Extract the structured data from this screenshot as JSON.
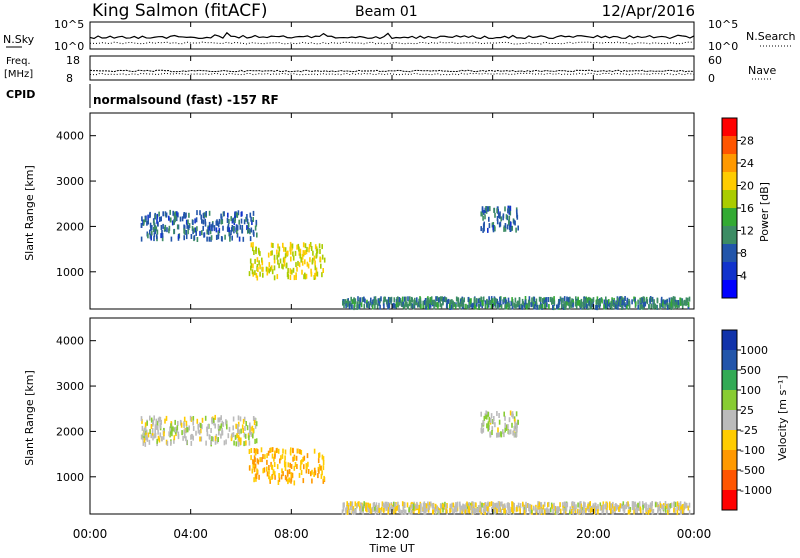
{
  "header": {
    "station": "King Salmon (fitACF)",
    "beam": "Beam 01",
    "date": "12/Apr/2016"
  },
  "noise_panel": {
    "left_label": "N.Sky",
    "right_label": "N.Search",
    "left_ticks": [
      "10^5",
      "10^0"
    ],
    "right_ticks": [
      "10^5",
      "10^0"
    ]
  },
  "freq_panel": {
    "left_label_line1": "Freq.",
    "left_label_line2": "[MHz]",
    "right_label": "Nave",
    "left_ticks": [
      "18",
      "8"
    ],
    "right_ticks": [
      "60",
      "0"
    ]
  },
  "cpid_panel": {
    "label": "CPID",
    "text": "normalsound (fast) -157 RF"
  },
  "x_axis": {
    "ticks": [
      "00:00",
      "04:00",
      "08:00",
      "12:00",
      "16:00",
      "20:00",
      "00:00"
    ],
    "title": "Time UT"
  },
  "power_panel": {
    "ylabel": "Slant Range [km]",
    "yticks": [
      "4000",
      "3000",
      "2000",
      "1000"
    ],
    "colorbar_label": "Power [dB]",
    "colorbar_ticks": [
      "28",
      "24",
      "20",
      "16",
      "12",
      "8",
      "4"
    ],
    "colorbar_colors": [
      "#ff0000",
      "#ff5500",
      "#ff9900",
      "#ffcc00",
      "#aacc00",
      "#33aa33",
      "#3c8c64",
      "#2255aa",
      "#1133cc",
      "#0000ff"
    ]
  },
  "velocity_panel": {
    "ylabel": "Slant Range [km]",
    "yticks": [
      "4000",
      "3000",
      "2000",
      "1000"
    ],
    "colorbar_label": "Velocity [m s⁻¹]",
    "colorbar_ticks": [
      "1000",
      "500",
      "100",
      "25",
      "-25",
      "-100",
      "-500",
      "-1000"
    ],
    "colorbar_colors": [
      "#1133aa",
      "#2255aa",
      "#33aa55",
      "#88cc33",
      "#bbbbbb",
      "#ffcc00",
      "#ff9900",
      "#ff5500",
      "#ff0000"
    ]
  },
  "chart_data": [
    {
      "type": "heatmap",
      "title": "Power",
      "x_range_hours": [
        0,
        24
      ],
      "y_range_km": [
        180,
        4500
      ],
      "color_range": [
        0,
        30
      ],
      "features": [
        {
          "t0": 2.0,
          "t1": 6.6,
          "r0": 1700,
          "r1": 2300,
          "value": 8
        },
        {
          "t0": 6.3,
          "t1": 9.3,
          "r0": 850,
          "r1": 1600,
          "value": 18
        },
        {
          "t0": 15.5,
          "t1": 17.0,
          "r0": 1900,
          "r1": 2400,
          "value": 8
        },
        {
          "t0": 10.0,
          "t1": 23.8,
          "r0": 200,
          "r1": 400,
          "value": 10
        }
      ]
    },
    {
      "type": "heatmap",
      "title": "Velocity",
      "x_range_hours": [
        0,
        24
      ],
      "y_range_km": [
        180,
        4500
      ],
      "color_range": [
        -1000,
        1000
      ],
      "features": [
        {
          "t0": 2.0,
          "t1": 6.6,
          "r0": 1700,
          "r1": 2300,
          "value": 0
        },
        {
          "t0": 6.3,
          "t1": 9.3,
          "r0": 850,
          "r1": 1600,
          "value": -300
        },
        {
          "t0": 15.5,
          "t1": 17.0,
          "r0": 1900,
          "r1": 2400,
          "value": 50
        },
        {
          "t0": 10.0,
          "t1": 23.8,
          "r0": 200,
          "r1": 400,
          "value": -50
        }
      ]
    }
  ]
}
